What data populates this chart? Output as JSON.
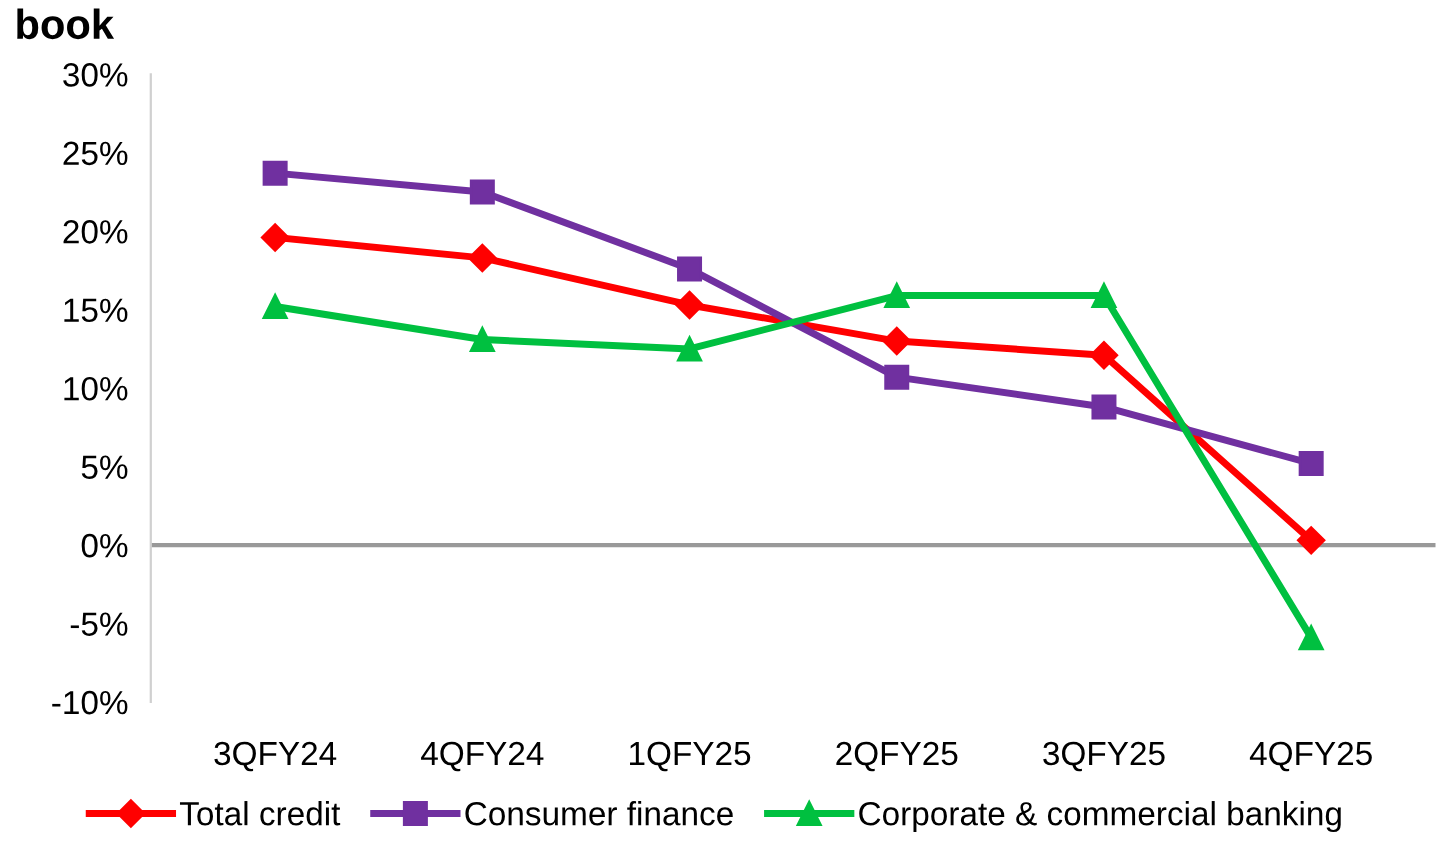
{
  "chart_data": {
    "type": "line",
    "title": "book",
    "categories": [
      "3QFY24",
      "4QFY24",
      "1QFY25",
      "2QFY25",
      "3QFY25",
      "4QFY25"
    ],
    "series": [
      {
        "name": "Total credit",
        "color": "#ff0000",
        "marker": "diamond",
        "values": [
          19.6,
          18.3,
          15.3,
          13.0,
          12.1,
          0.3
        ]
      },
      {
        "name": "Consumer finance",
        "color": "#7030a0",
        "marker": "square",
        "values": [
          23.7,
          22.5,
          17.6,
          10.7,
          8.8,
          5.2
        ]
      },
      {
        "name": "Corporate & commercial banking",
        "color": "#00c040",
        "marker": "triangle",
        "values": [
          15.2,
          13.1,
          12.5,
          15.9,
          15.9,
          -5.9
        ]
      }
    ],
    "ylim": [
      -10,
      30
    ],
    "yticks": [
      {
        "value": -10,
        "label": "-10%"
      },
      {
        "value": -5,
        "label": "-5%"
      },
      {
        "value": 0,
        "label": "0%"
      },
      {
        "value": 5,
        "label": "5%"
      },
      {
        "value": 10,
        "label": "10%"
      },
      {
        "value": 15,
        "label": "15%"
      },
      {
        "value": 20,
        "label": "20%"
      },
      {
        "value": 25,
        "label": "25%"
      },
      {
        "value": 30,
        "label": "30%"
      }
    ],
    "ref_lines": [
      {
        "axis": "y",
        "value": 0,
        "label": null,
        "color": "#999999"
      }
    ],
    "grid": false,
    "legend": "bottom",
    "line_style": "solid"
  }
}
